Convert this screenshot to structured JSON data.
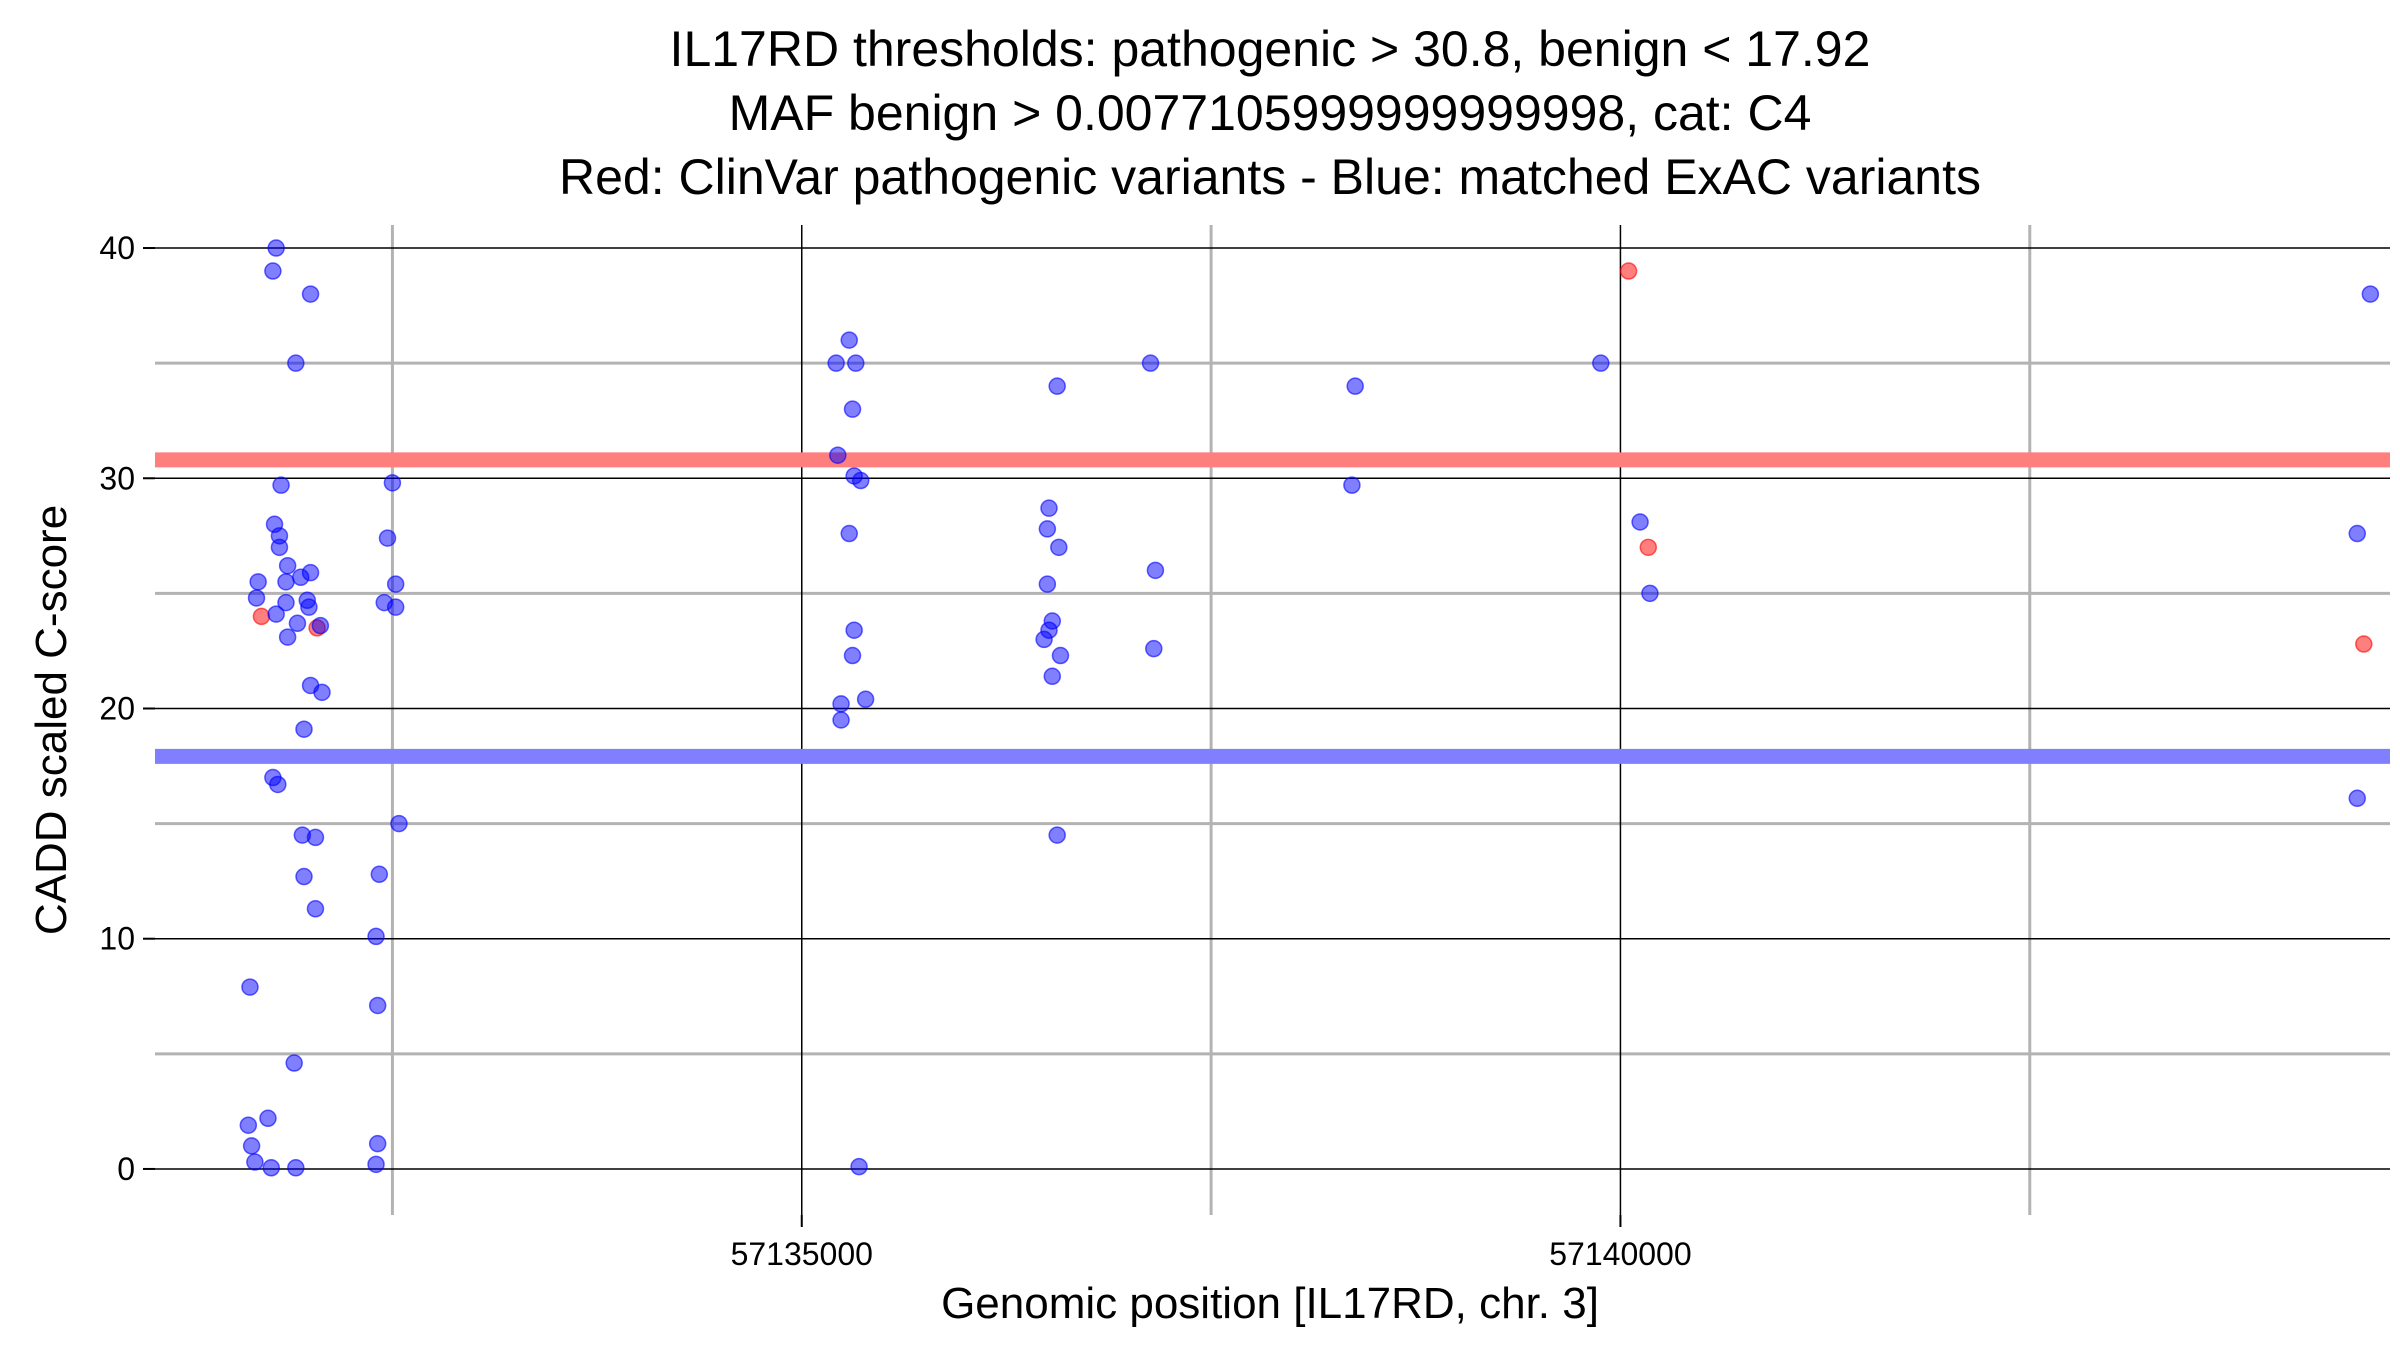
{
  "chart_data": {
    "type": "scatter",
    "title_lines": [
      "IL17RD thresholds: pathogenic > 30.8, benign < 17.92",
      "MAF benign > 0.0077105999999999998, cat: C4",
      "Red: ClinVar pathogenic variants - Blue: matched ExAC variants"
    ],
    "xlabel": "Genomic position [IL17RD, chr. 3]",
    "ylabel": "CADD scaled C-score",
    "xlim": [
      57131050,
      57144700
    ],
    "ylim": [
      -2,
      41
    ],
    "x_major_ticks": [
      57135000,
      57140000
    ],
    "x_minor_gridlines": [
      57132500,
      57137500,
      57142500
    ],
    "y_major_ticks": [
      0,
      10,
      20,
      30,
      40
    ],
    "y_minor_gridlines": [
      5,
      15,
      25,
      35
    ],
    "thresholds": [
      {
        "name": "pathogenic",
        "value": 30.8,
        "color": "#ff7f7f"
      },
      {
        "name": "benign",
        "value": 17.92,
        "color": "#7f7fff"
      }
    ],
    "colors": {
      "pathogenic": "#ff0000",
      "benign": "#0000ff",
      "major_grid": "#000000",
      "minor_grid": "#b3b3b3"
    },
    "series": [
      {
        "name": "ClinVar pathogenic",
        "color": "#ff0000",
        "points": [
          [
            57131700,
            24.0
          ],
          [
            57132040,
            23.5
          ],
          [
            57140050,
            39.0
          ],
          [
            57140170,
            27.0
          ],
          [
            57144540,
            22.8
          ]
        ]
      },
      {
        "name": "ExAC matched",
        "color": "#0000ff",
        "points": [
          [
            57131790,
            40.0
          ],
          [
            57131770,
            39.0
          ],
          [
            57132000,
            38.0
          ],
          [
            57131910,
            35.0
          ],
          [
            57131820,
            29.7
          ],
          [
            57132500,
            29.8
          ],
          [
            57131780,
            28.0
          ],
          [
            57131810,
            27.5
          ],
          [
            57131810,
            27.0
          ],
          [
            57132470,
            27.4
          ],
          [
            57131860,
            26.2
          ],
          [
            57131940,
            25.7
          ],
          [
            57132000,
            25.9
          ],
          [
            57131680,
            25.5
          ],
          [
            57131850,
            25.5
          ],
          [
            57132520,
            25.4
          ],
          [
            57131670,
            24.8
          ],
          [
            57131850,
            24.6
          ],
          [
            57131980,
            24.7
          ],
          [
            57131990,
            24.4
          ],
          [
            57132450,
            24.6
          ],
          [
            57132520,
            24.4
          ],
          [
            57131790,
            24.1
          ],
          [
            57131920,
            23.7
          ],
          [
            57132060,
            23.6
          ],
          [
            57131860,
            23.1
          ],
          [
            57132000,
            21.0
          ],
          [
            57132070,
            20.7
          ],
          [
            57131960,
            19.1
          ],
          [
            57131770,
            17.0
          ],
          [
            57131800,
            16.7
          ],
          [
            57131950,
            14.5
          ],
          [
            57132030,
            14.4
          ],
          [
            57132540,
            15.0
          ],
          [
            57131960,
            12.7
          ],
          [
            57132420,
            12.8
          ],
          [
            57132030,
            11.3
          ],
          [
            57132400,
            10.1
          ],
          [
            57131630,
            7.9
          ],
          [
            57132410,
            7.1
          ],
          [
            57131900,
            4.6
          ],
          [
            57131740,
            2.2
          ],
          [
            57131620,
            1.9
          ],
          [
            57131640,
            1.0
          ],
          [
            57132410,
            1.1
          ],
          [
            57131660,
            0.3
          ],
          [
            57131760,
            0.05
          ],
          [
            57131910,
            0.05
          ],
          [
            57132400,
            0.2
          ],
          [
            57135210,
            35.0
          ],
          [
            57135290,
            36.0
          ],
          [
            57135330,
            35.0
          ],
          [
            57135310,
            33.0
          ],
          [
            57135220,
            31.0
          ],
          [
            57135320,
            30.1
          ],
          [
            57135360,
            29.9
          ],
          [
            57135290,
            27.6
          ],
          [
            57135320,
            23.4
          ],
          [
            57135310,
            22.3
          ],
          [
            57135240,
            20.2
          ],
          [
            57135390,
            20.4
          ],
          [
            57135240,
            19.5
          ],
          [
            57135350,
            0.1
          ],
          [
            57137130,
            35.0
          ],
          [
            57136560,
            34.0
          ],
          [
            57138380,
            34.0
          ],
          [
            57139880,
            35.0
          ],
          [
            57136510,
            28.7
          ],
          [
            57136500,
            27.8
          ],
          [
            57136570,
            27.0
          ],
          [
            57138360,
            29.7
          ],
          [
            57140120,
            28.1
          ],
          [
            57137160,
            26.0
          ],
          [
            57136500,
            25.4
          ],
          [
            57140180,
            25.0
          ],
          [
            57136530,
            23.8
          ],
          [
            57136510,
            23.4
          ],
          [
            57136480,
            23.0
          ],
          [
            57136580,
            22.3
          ],
          [
            57137150,
            22.6
          ],
          [
            57136530,
            21.4
          ],
          [
            57136560,
            14.5
          ],
          [
            57144580,
            38.0
          ],
          [
            57144500,
            27.6
          ],
          [
            57144500,
            16.1
          ]
        ]
      }
    ]
  }
}
